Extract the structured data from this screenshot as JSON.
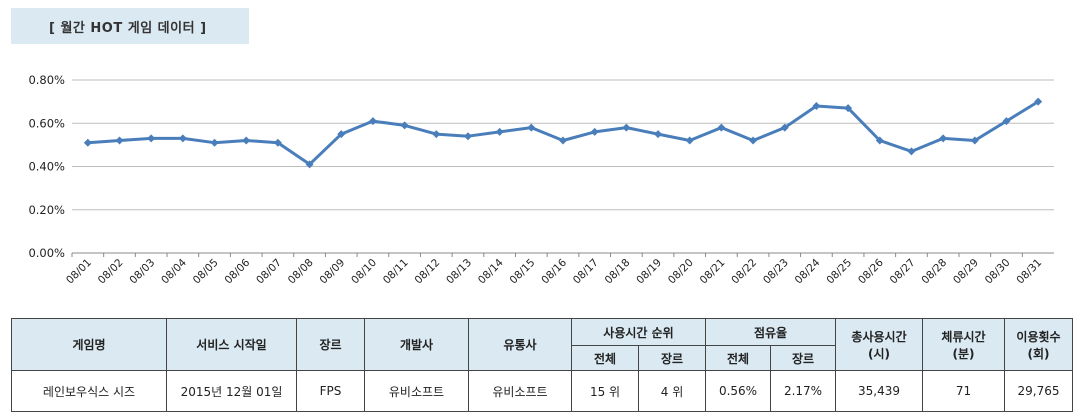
{
  "section_title": "[ 월간 HOT 게임 데이터 ]",
  "chart_data": {
    "type": "line",
    "categories": [
      "08/01",
      "08/02",
      "08/03",
      "08/04",
      "08/05",
      "08/06",
      "08/07",
      "08/08",
      "08/09",
      "08/10",
      "08/11",
      "08/12",
      "08/13",
      "08/14",
      "08/15",
      "08/16",
      "08/17",
      "08/18",
      "08/19",
      "08/20",
      "08/21",
      "08/22",
      "08/23",
      "08/24",
      "08/25",
      "08/26",
      "08/27",
      "08/28",
      "08/29",
      "08/30",
      "08/31"
    ],
    "values": [
      0.51,
      0.52,
      0.53,
      0.53,
      0.51,
      0.52,
      0.51,
      0.41,
      0.55,
      0.61,
      0.59,
      0.55,
      0.54,
      0.56,
      0.58,
      0.52,
      0.56,
      0.58,
      0.55,
      0.52,
      0.58,
      0.52,
      0.58,
      0.68,
      0.67,
      0.52,
      0.47,
      0.53,
      0.52,
      0.61,
      0.7
    ],
    "ylim": [
      0,
      0.8
    ],
    "yticks": [
      0,
      0.2,
      0.4,
      0.6,
      0.8
    ],
    "ytick_labels": [
      "0.00%",
      "0.20%",
      "0.40%",
      "0.60%",
      "0.80%"
    ],
    "grid": true,
    "color": "#4a7ebb",
    "title": "",
    "xlabel": "",
    "ylabel": ""
  },
  "table": {
    "headers": {
      "game_name": "게임명",
      "service_start": "서비스 시작일",
      "genre": "장르",
      "developer": "개발사",
      "publisher": "유통사",
      "usage_rank": "사용시간 순위",
      "share": "점유율",
      "total_usage": "총사용시간\n(시)",
      "stay_time": "체류시간\n(분)",
      "use_count": "이용횟수\n(회)",
      "overall": "전체",
      "by_genre": "장르"
    },
    "row": {
      "game_name": "레인보우식스 시즈",
      "service_start": "2015년 12월 01일",
      "genre": "FPS",
      "developer": "유비소프트",
      "publisher": "유비소프트",
      "rank_overall": "15 위",
      "rank_genre": "4 위",
      "share_overall": "0.56%",
      "share_genre": "2.17%",
      "total_usage": "35,439",
      "stay_time": "71",
      "use_count": "29,765"
    }
  }
}
